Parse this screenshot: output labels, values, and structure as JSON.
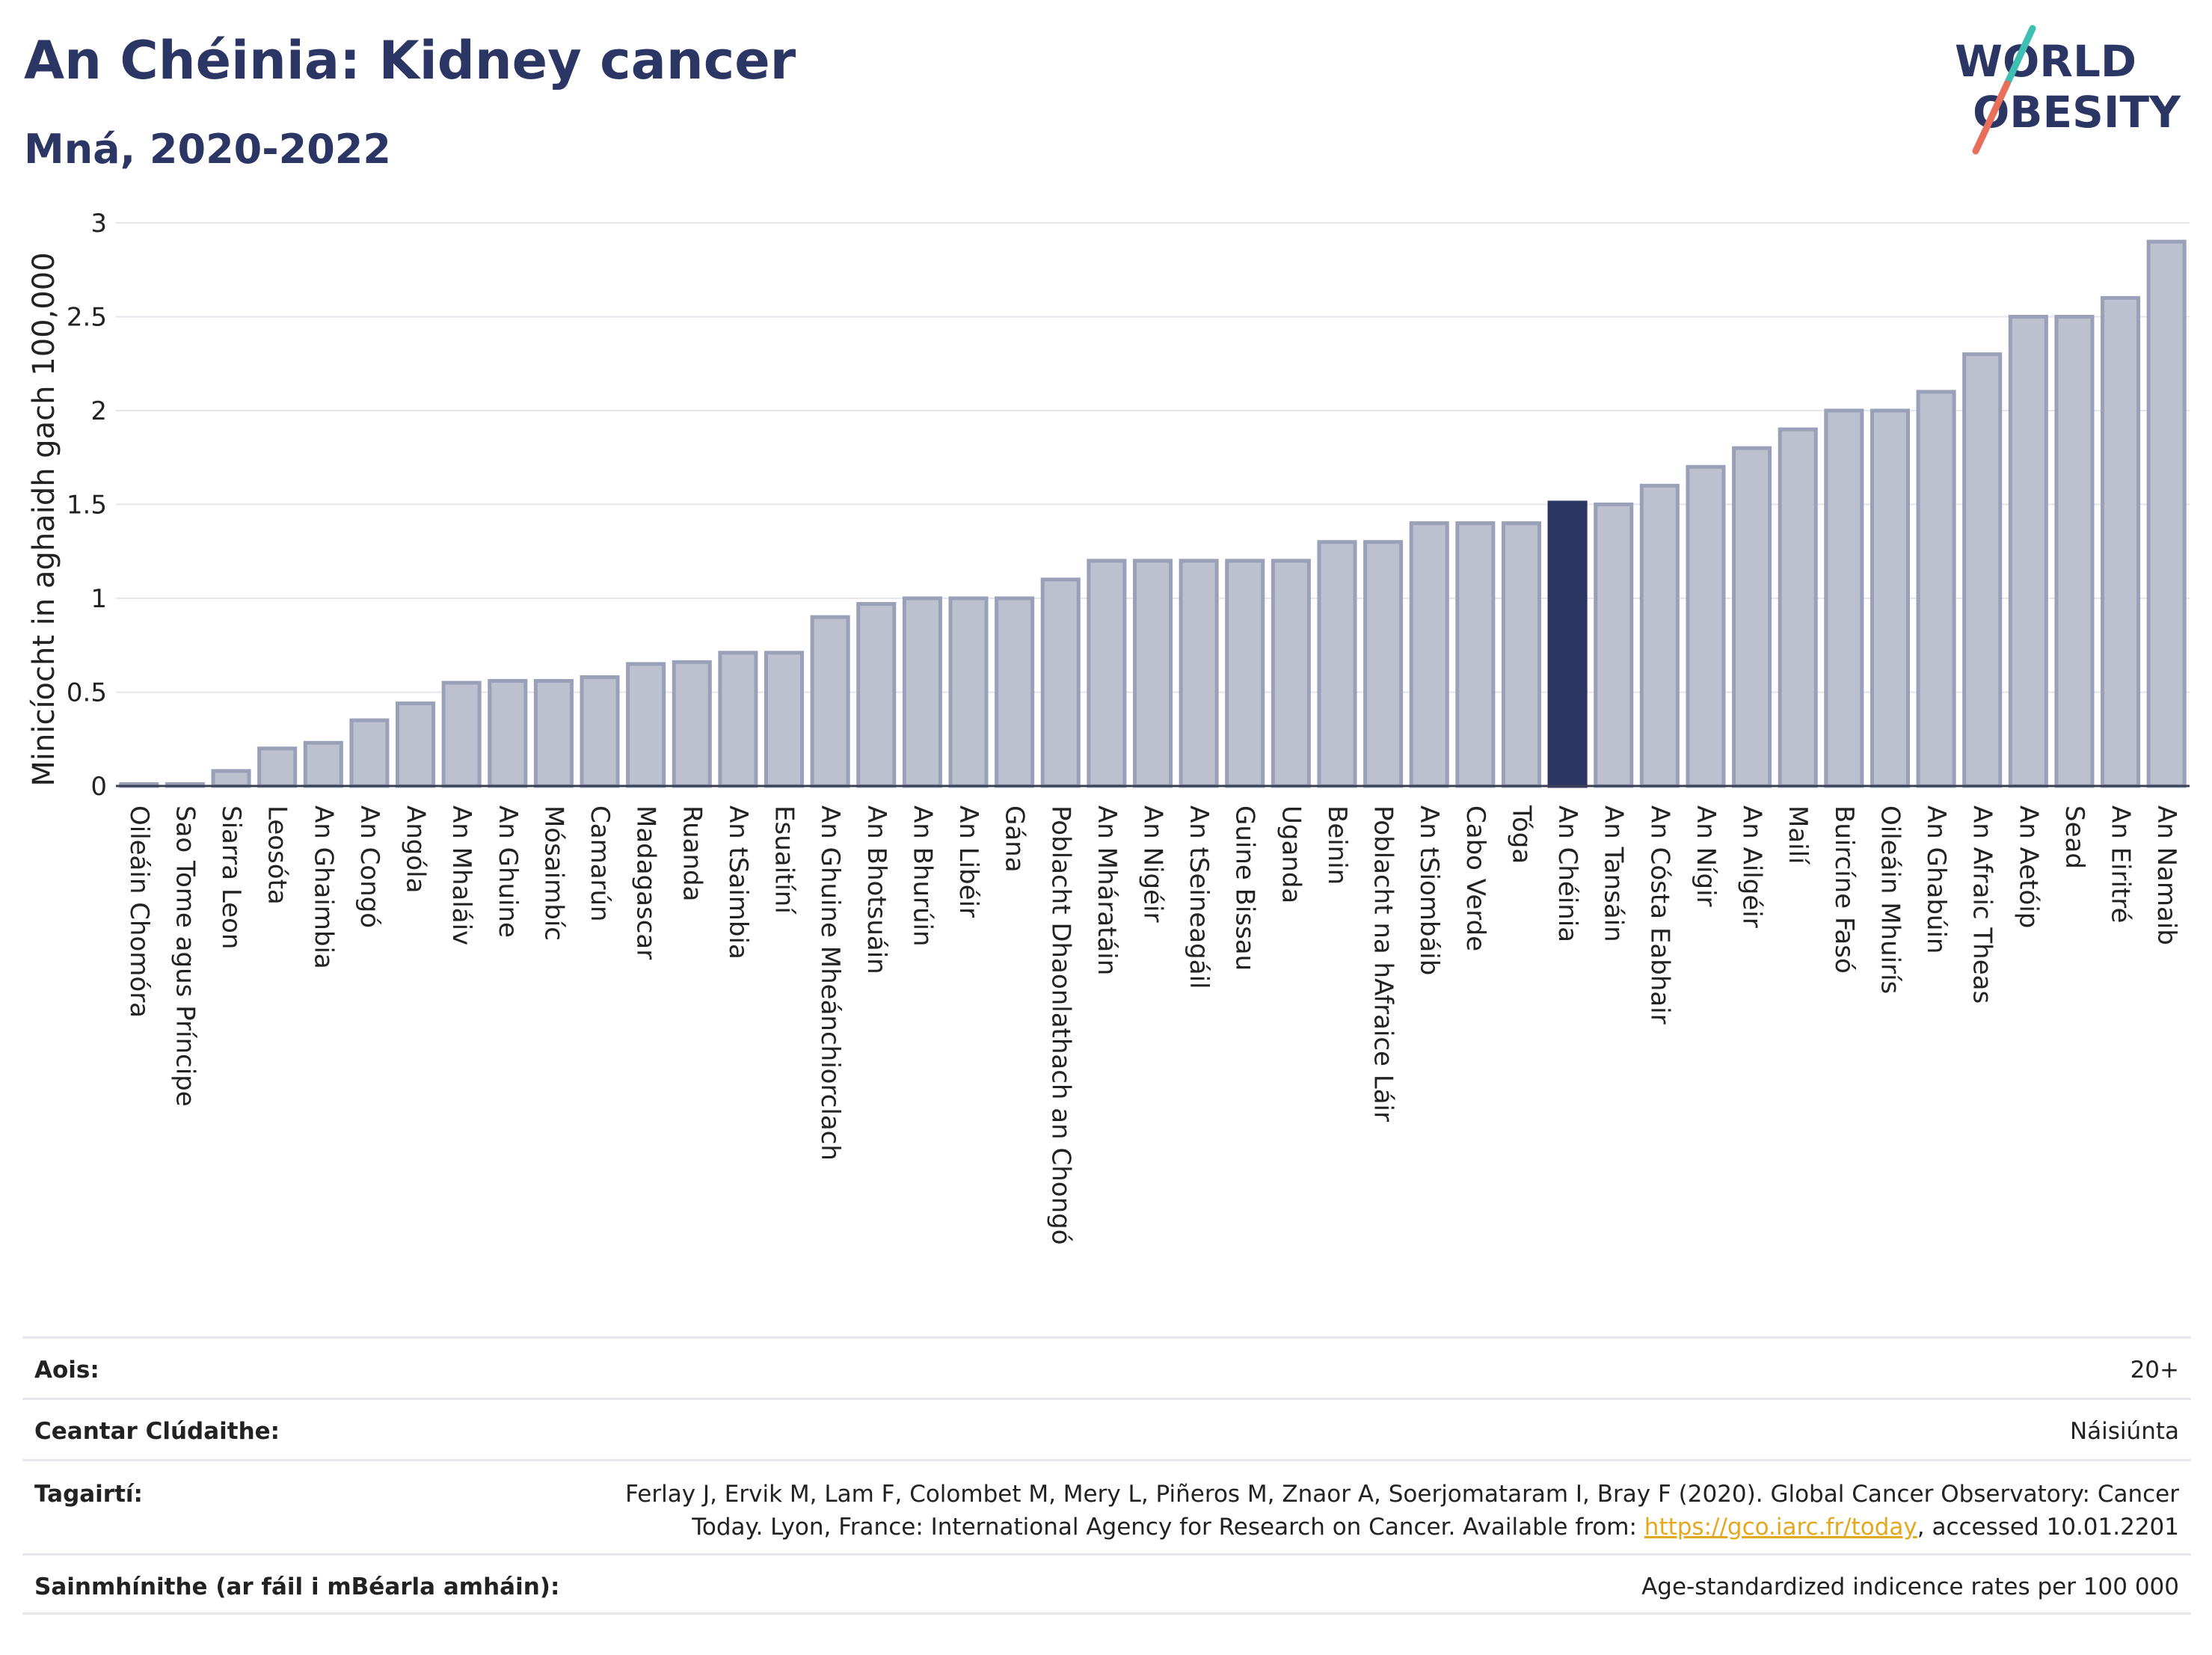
{
  "title": "An Chéinia: Kidney cancer",
  "subtitle": "Mná, 2020-2022",
  "logo": {
    "line1": "WORLD",
    "line2": "OBESITY",
    "colors": {
      "navy": "#2b3664",
      "teal": "#3fbfb2",
      "coral": "#e8705a"
    }
  },
  "colors": {
    "bar": "#bcc0cf",
    "bar_stroke": "#9aa0b8",
    "highlight": "#2b3664",
    "grid": "#e4e6ec"
  },
  "chart_data": {
    "type": "bar",
    "ylabel": "Minicíocht in aghaidh gach 100,000",
    "xlabel": "",
    "ylim": [
      0,
      3
    ],
    "yticks": [
      "0",
      "0.5",
      "1",
      "1.5",
      "2",
      "2.5",
      "3"
    ],
    "ytick_values": [
      0,
      0.5,
      1,
      1.5,
      2,
      2.5,
      3
    ],
    "grid": true,
    "highlight": "An Chéinia",
    "categories": [
      "Oileáin Chomóra",
      "Sao Tome agus Príncipe",
      "Siarra Leon",
      "Leosóta",
      "An Ghaimbia",
      "An Congó",
      "Angóla",
      "An Mhaláiv",
      "An Ghuine",
      "Mósaimbíc",
      "Camarún",
      "Madagascar",
      "Ruanda",
      "An tSaimbia",
      "Esuaitíní",
      "An Ghuine Mheánchiorclach",
      "An Bhotsuáin",
      "An Bhurúin",
      "An Libéir",
      "Gána",
      "Poblacht Dhaonlathach an Chongó",
      "An Mháratáin",
      "An Nigéir",
      "An tSeineagáil",
      "Guine Bissau",
      "Uganda",
      "Beinin",
      "Poblacht na hAfraice Láir",
      "An tSiombáib",
      "Cabo Verde",
      "Tóga",
      "An Chéinia",
      "An Tansáin",
      "An Cósta Eabhair",
      "An Nígir",
      "An Ailgéir",
      "Mailí",
      "Buircíne Fasó",
      "Oileáin Mhuirís",
      "An Ghabúin",
      "An Afraic Theas",
      "An Aetóip",
      "Sead",
      "An Eiritré",
      "An Namaib"
    ],
    "values": [
      0.01,
      0.01,
      0.08,
      0.2,
      0.23,
      0.35,
      0.44,
      0.55,
      0.56,
      0.56,
      0.58,
      0.65,
      0.66,
      0.71,
      0.71,
      0.9,
      0.97,
      1.0,
      1.0,
      1.0,
      1.1,
      1.2,
      1.2,
      1.2,
      1.2,
      1.2,
      1.3,
      1.3,
      1.4,
      1.4,
      1.4,
      1.51,
      1.5,
      1.6,
      1.7,
      1.8,
      1.9,
      2.0,
      2.0,
      2.1,
      2.3,
      2.5,
      2.5,
      2.6,
      2.9
    ]
  },
  "info": {
    "age_label": "Aois:",
    "age_value": "20+",
    "coverage_label": "Ceantar Clúdaithe:",
    "coverage_value": "Náisiúnta",
    "refs_label": "Tagairtí:",
    "refs_line1": "Ferlay J, Ervik M, Lam F, Colombet M, Mery L, Piñeros M, Znaor A, Soerjomataram I, Bray F (2020). Global Cancer Observatory: Cancer",
    "refs_line2_pre": "Today. Lyon, France: International Agency for Research on Cancer. Available from: ",
    "refs_link": "https://gco.iarc.fr/today",
    "refs_line2_post": ", accessed 10.01.2201",
    "defs_label": "Sainmhínithe (ar fáil i mBéarla amháin):",
    "defs_value": "Age-standardized indicence rates per 100 000"
  }
}
